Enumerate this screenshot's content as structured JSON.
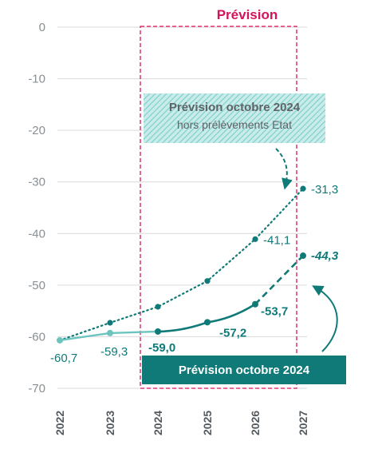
{
  "colors": {
    "dark_teal": "#0f7a78",
    "light_teal": "#6cc4bf",
    "hatch_teal": "#8fd6d1",
    "forecast_frame": "#d4145a",
    "grid": "#d9d9d9",
    "axis_text": "#8a8f93"
  },
  "forecast_header": "Prévision",
  "annotations": {
    "hors_title": "Prévision octobre 2024",
    "hors_subtitle": "hors prélèvements Etat",
    "main_box": "Prévision octobre 2024"
  },
  "chart_data": {
    "type": "line",
    "x": [
      "2022",
      "2023",
      "2024",
      "2025",
      "2026",
      "2027"
    ],
    "ylim": [
      -70,
      0
    ],
    "yticks": [
      0,
      -10,
      -20,
      -30,
      -40,
      -50,
      -60,
      -70
    ],
    "grid": "horizontal",
    "series": [
      {
        "name": "Prévision octobre 2024",
        "points": [
          {
            "x": "2022",
            "y": -60.7,
            "label": "-60,7",
            "style": "solid-light"
          },
          {
            "x": "2023",
            "y": -59.3,
            "label": "-59,3",
            "style": "solid-light"
          },
          {
            "x": "2024",
            "y": -59.0,
            "label": "-59,0",
            "style": "solid-dark"
          },
          {
            "x": "2025",
            "y": -57.2,
            "label": "-57,2",
            "style": "solid-dark"
          },
          {
            "x": "2026",
            "y": -53.7,
            "label": "-53,7",
            "style": "solid-dark"
          },
          {
            "x": "2027",
            "y": -44.3,
            "label": "-44,3",
            "style": "dashed-dark"
          }
        ]
      },
      {
        "name": "Prévision octobre 2024 hors prélèvements Etat",
        "points": [
          {
            "x": "2022",
            "y": -60.7,
            "label": ""
          },
          {
            "x": "2023",
            "y": -57.3,
            "label": ""
          },
          {
            "x": "2024",
            "y": -54.2,
            "label": ""
          },
          {
            "x": "2025",
            "y": -49.2,
            "label": ""
          },
          {
            "x": "2026",
            "y": -41.1,
            "label": "-41,1"
          },
          {
            "x": "2027",
            "y": -31.3,
            "label": "-31,3"
          }
        ]
      }
    ]
  }
}
